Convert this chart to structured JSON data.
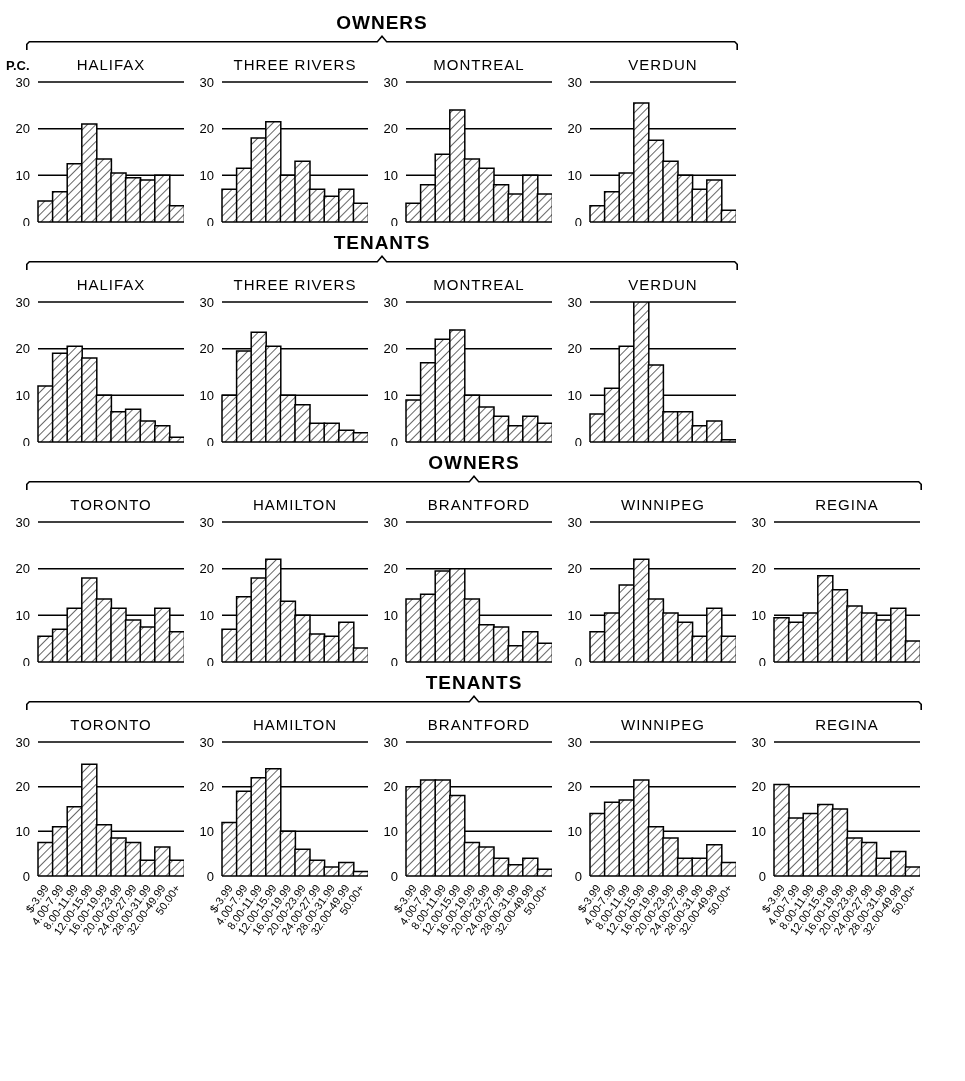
{
  "chart_data": [
    {
      "type": "bar",
      "title": "HALIFAX",
      "ylabel": "P.C.",
      "annotations": [
        "OWNERS"
      ],
      "categories": [
        null,
        null,
        null,
        null,
        null,
        null,
        null,
        null,
        null,
        null
      ],
      "values": [
        4.5,
        6.5,
        12.5,
        21,
        13.5,
        10.5,
        9.5,
        9,
        10,
        3.5
      ],
      "color": "#000000",
      "ylim": [
        0,
        30
      ],
      "yticks": [
        0,
        10,
        20,
        30
      ],
      "grid": "y",
      "tick_labels": "y"
    },
    {
      "type": "bar",
      "title": "THREE RIVERS",
      "categories": [
        null,
        null,
        null,
        null,
        null,
        null,
        null,
        null,
        null,
        null
      ],
      "values": [
        7,
        11.5,
        18,
        21.5,
        10,
        13,
        7,
        5.5,
        7,
        4
      ],
      "color": "#000000",
      "ylim": [
        0,
        30
      ],
      "yticks": [
        0,
        10,
        20,
        30
      ],
      "grid": "y",
      "tick_labels": "y"
    },
    {
      "type": "bar",
      "title": "MONTREAL",
      "categories": [
        null,
        null,
        null,
        null,
        null,
        null,
        null,
        null,
        null,
        null
      ],
      "values": [
        4,
        8,
        14.5,
        24,
        13.5,
        11.5,
        8,
        6,
        10,
        6
      ],
      "color": "#000000",
      "ylim": [
        0,
        30
      ],
      "yticks": [
        0,
        10,
        20,
        30
      ],
      "grid": "y",
      "tick_labels": "y"
    },
    {
      "type": "bar",
      "title": "VERDUN",
      "categories": [
        null,
        null,
        null,
        null,
        null,
        null,
        null,
        null,
        null,
        null
      ],
      "values": [
        3.5,
        6.5,
        10.5,
        25.5,
        17.5,
        13,
        10,
        7,
        9,
        2.5
      ],
      "color": "#000000",
      "ylim": [
        0,
        30
      ],
      "yticks": [
        0,
        10,
        20,
        30
      ],
      "grid": "y",
      "tick_labels": "y"
    },
    {
      "type": "bar",
      "title": "HALIFAX",
      "annotations": [
        "TENANTS"
      ],
      "categories": [
        null,
        null,
        null,
        null,
        null,
        null,
        null,
        null,
        null,
        null
      ],
      "values": [
        12,
        19,
        20.5,
        18,
        10,
        6.5,
        7,
        4.5,
        3.5,
        1
      ],
      "color": "#000000",
      "ylim": [
        0,
        30
      ],
      "yticks": [
        0,
        10,
        20,
        30
      ],
      "grid": "y",
      "tick_labels": "y"
    },
    {
      "type": "bar",
      "title": "THREE RIVERS",
      "categories": [
        null,
        null,
        null,
        null,
        null,
        null,
        null,
        null,
        null,
        null
      ],
      "values": [
        10,
        19.5,
        23.5,
        20.5,
        10,
        8,
        4,
        4,
        2.5,
        2
      ],
      "color": "#000000",
      "ylim": [
        0,
        30
      ],
      "yticks": [
        0,
        10,
        20,
        30
      ],
      "grid": "y",
      "tick_labels": "y"
    },
    {
      "type": "bar",
      "title": "MONTREAL",
      "categories": [
        null,
        null,
        null,
        null,
        null,
        null,
        null,
        null,
        null,
        null
      ],
      "values": [
        9,
        17,
        22,
        24,
        10,
        7.5,
        5.5,
        3.5,
        5.5,
        4
      ],
      "color": "#000000",
      "ylim": [
        0,
        30
      ],
      "yticks": [
        0,
        10,
        20,
        30
      ],
      "grid": "y",
      "tick_labels": "y"
    },
    {
      "type": "bar",
      "title": "VERDUN",
      "categories": [
        null,
        null,
        null,
        null,
        null,
        null,
        null,
        null,
        null,
        null
      ],
      "values": [
        6,
        11.5,
        20.5,
        30,
        16.5,
        6.5,
        6.5,
        3.5,
        4.5,
        0.5
      ],
      "color": "#000000",
      "ylim": [
        0,
        30
      ],
      "yticks": [
        0,
        10,
        20,
        30
      ],
      "grid": "y",
      "tick_labels": "y"
    },
    {
      "type": "bar",
      "title": "TORONTO",
      "annotations": [
        "OWNERS"
      ],
      "categories": [
        null,
        null,
        null,
        null,
        null,
        null,
        null,
        null,
        null,
        null
      ],
      "values": [
        5.5,
        7,
        11.5,
        18,
        13.5,
        11.5,
        9,
        7.5,
        11.5,
        6.5
      ],
      "color": "#000000",
      "ylim": [
        0,
        30
      ],
      "yticks": [
        0,
        10,
        20,
        30
      ],
      "grid": "y",
      "tick_labels": "y"
    },
    {
      "type": "bar",
      "title": "HAMILTON",
      "categories": [
        null,
        null,
        null,
        null,
        null,
        null,
        null,
        null,
        null,
        null
      ],
      "values": [
        7,
        14,
        18,
        22,
        13,
        10,
        6,
        5.5,
        8.5,
        3
      ],
      "color": "#000000",
      "ylim": [
        0,
        30
      ],
      "yticks": [
        0,
        10,
        20,
        30
      ],
      "grid": "y",
      "tick_labels": "y"
    },
    {
      "type": "bar",
      "title": "BRANTFORD",
      "categories": [
        null,
        null,
        null,
        null,
        null,
        null,
        null,
        null,
        null,
        null
      ],
      "values": [
        13.5,
        14.5,
        19.5,
        20,
        13.5,
        8,
        7.5,
        3.5,
        6.5,
        4
      ],
      "color": "#000000",
      "ylim": [
        0,
        30
      ],
      "yticks": [
        0,
        10,
        20,
        30
      ],
      "grid": "y",
      "tick_labels": "y"
    },
    {
      "type": "bar",
      "title": "WINNIPEG",
      "categories": [
        null,
        null,
        null,
        null,
        null,
        null,
        null,
        null,
        null,
        null
      ],
      "values": [
        6.5,
        10.5,
        16.5,
        22,
        13.5,
        10.5,
        8.5,
        5.5,
        11.5,
        5.5
      ],
      "color": "#000000",
      "ylim": [
        0,
        30
      ],
      "yticks": [
        0,
        10,
        20,
        30
      ],
      "grid": "y",
      "tick_labels": "y"
    },
    {
      "type": "bar",
      "title": "REGINA",
      "categories": [
        null,
        null,
        null,
        null,
        null,
        null,
        null,
        null,
        null,
        null
      ],
      "values": [
        9.5,
        8.5,
        10.5,
        18.5,
        15.5,
        12,
        10.5,
        9,
        11.5,
        4.5
      ],
      "color": "#000000",
      "ylim": [
        0,
        30
      ],
      "yticks": [
        0,
        10,
        20,
        30
      ],
      "grid": "y",
      "tick_labels": "y"
    },
    {
      "type": "bar",
      "title": "TORONTO",
      "annotations": [
        "TENANTS"
      ],
      "categories": [
        "$-3.99",
        "4.00-7.99",
        "8.00-11.99",
        "12.00-15.99",
        "16.00-19.99",
        "20.00-23.99",
        "24.00-27.99",
        "28.00-31.99",
        "32.00-49.99",
        "50.00+"
      ],
      "values": [
        7.5,
        11,
        15.5,
        25,
        11.5,
        8.5,
        7.5,
        3.5,
        6.5,
        3.5
      ],
      "color": "#000000",
      "ylim": [
        0,
        30
      ],
      "yticks": [
        0,
        10,
        20,
        30
      ],
      "grid": "y"
    },
    {
      "type": "bar",
      "title": "HAMILTON",
      "categories": [
        "$-3.99",
        "4.00-7.99",
        "8.00-11.99",
        "12.00-15.99",
        "16.00-19.99",
        "20.00-23.99",
        "24.00-27.99",
        "28.00-31.99",
        "32.00-49.99",
        "50.00+"
      ],
      "values": [
        12,
        19,
        22,
        24,
        10,
        6,
        3.5,
        2,
        3,
        1
      ],
      "color": "#000000",
      "ylim": [
        0,
        30
      ],
      "yticks": [
        0,
        10,
        20,
        30
      ],
      "grid": "y"
    },
    {
      "type": "bar",
      "title": "BRANTFORD",
      "categories": [
        "$-3.99",
        "4.00-7.99",
        "8.00-11.99",
        "12.00-15.99",
        "16.00-19.99",
        "20.00-23.99",
        "24.00-27.99",
        "28.00-31.99",
        "32.00-49.99",
        "50.00+"
      ],
      "values": [
        20,
        21.5,
        21.5,
        18,
        7.5,
        6.5,
        4,
        2.5,
        4,
        1.5
      ],
      "color": "#000000",
      "ylim": [
        0,
        30
      ],
      "yticks": [
        0,
        10,
        20,
        30
      ],
      "grid": "y"
    },
    {
      "type": "bar",
      "title": "WINNIPEG",
      "categories": [
        "$-3.99",
        "4.00-7.99",
        "8.00-11.99",
        "12.00-15.99",
        "16.00-19.99",
        "20.00-23.99",
        "24.00-27.99",
        "28.00-31.99",
        "32.00-49.99",
        "50.00+"
      ],
      "values": [
        14,
        16.5,
        17,
        21.5,
        11,
        8.5,
        4,
        4,
        7,
        3
      ],
      "color": "#000000",
      "ylim": [
        0,
        30
      ],
      "yticks": [
        0,
        10,
        20,
        30
      ],
      "grid": "y"
    },
    {
      "type": "bar",
      "title": "REGINA",
      "categories": [
        "$-3.99",
        "4.00-7.99",
        "8.00-11.99",
        "12.00-15.99",
        "16.00-19.99",
        "20.00-23.99",
        "24.00-27.99",
        "28.00-31.99",
        "32.00-49.99",
        "50.00+"
      ],
      "values": [
        20.5,
        13,
        14,
        16,
        15,
        8.5,
        7.5,
        4,
        5.5,
        2
      ],
      "color": "#000000",
      "ylim": [
        0,
        30
      ],
      "yticks": [
        0,
        10,
        20,
        30
      ],
      "grid": "y"
    }
  ]
}
